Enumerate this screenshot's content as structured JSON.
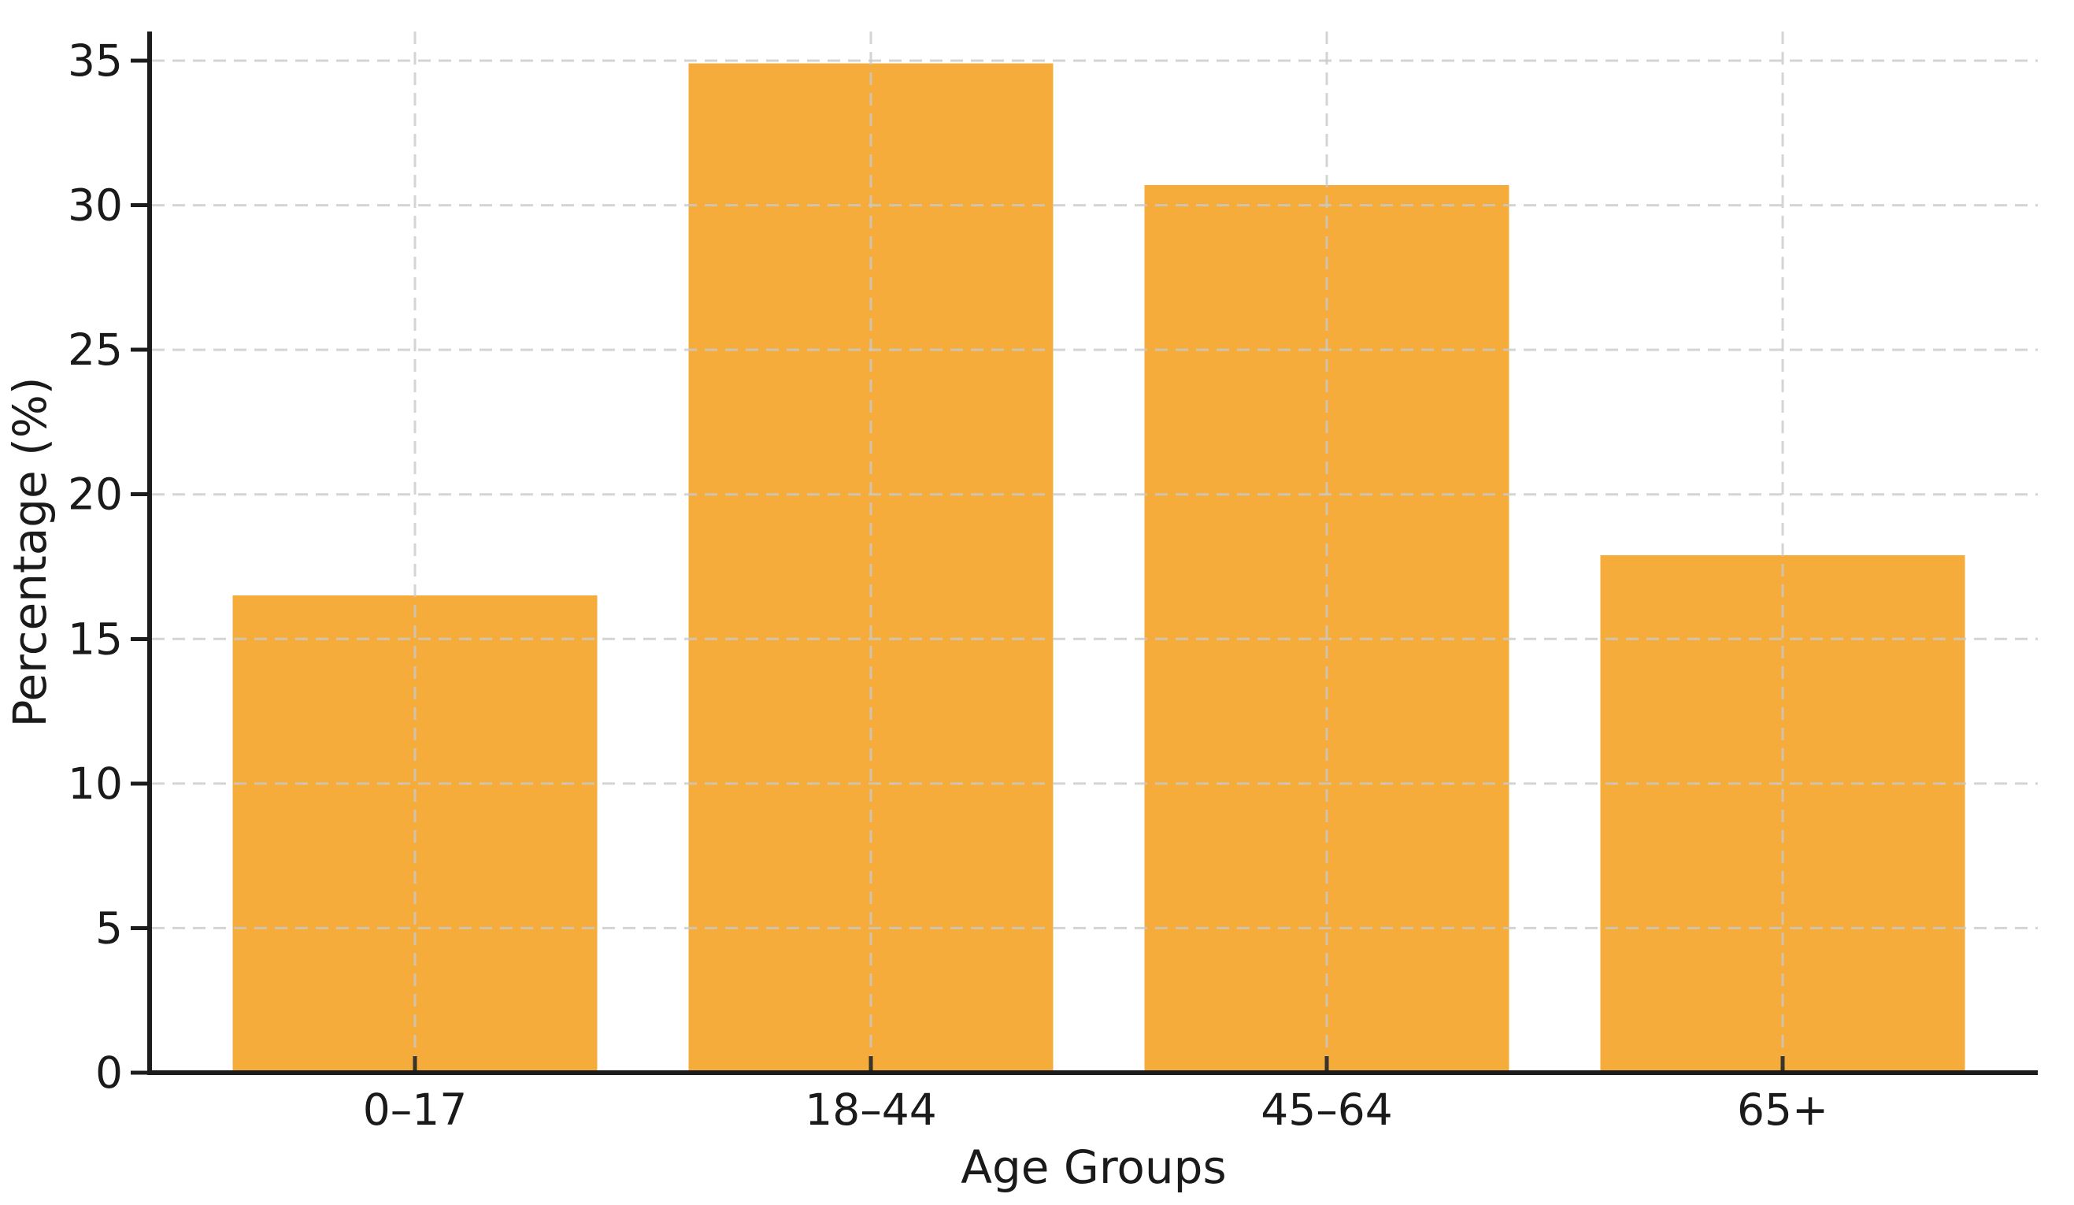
{
  "colors": {
    "background": "#FFFFFF",
    "bar": "#F5AC3B",
    "grid": "#C9C9C9",
    "axis": "#1C1C1C",
    "text": "#1A1A1A"
  },
  "chart_data": {
    "type": "bar",
    "categories": [
      "0–17",
      "18–44",
      "45–64",
      "65+"
    ],
    "values": [
      16.5,
      34.9,
      30.7,
      17.9
    ],
    "xlabel": "Age Groups",
    "ylabel": "Percentage (%)",
    "ylim": [
      0,
      36
    ],
    "yticks": [
      0,
      5,
      10,
      15,
      20,
      25,
      30,
      35
    ],
    "ytick_labels": [
      "0",
      "5",
      "10",
      "15",
      "20",
      "25",
      "30",
      "35"
    ],
    "grid": "dashed, horizontal and vertical, drawn over bars",
    "legend_position": "none",
    "bar_color_hex": "#F5AC3B"
  }
}
